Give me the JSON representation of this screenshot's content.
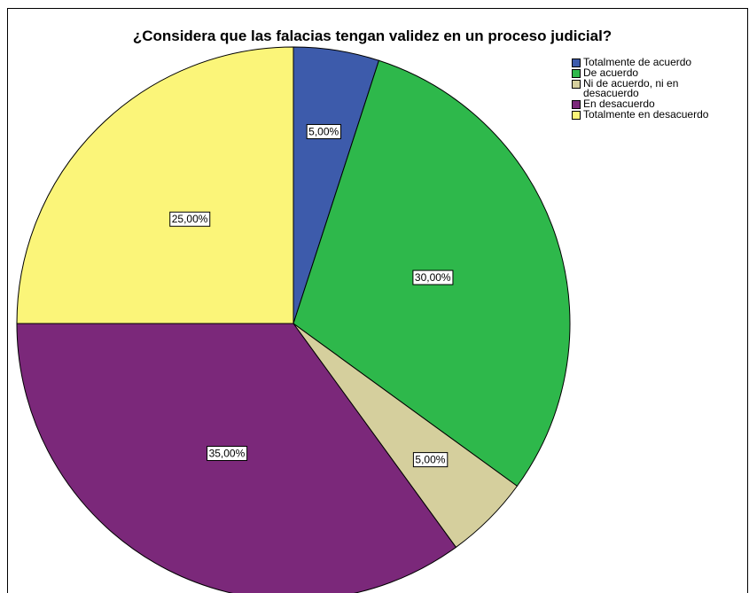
{
  "chart_data": {
    "type": "pie",
    "title": "¿Considera que las falacias tengan validez en un proceso judicial?",
    "categories": [
      "Totalmente de acuerdo",
      "De acuerdo",
      "Ni de acuerdo, ni en desacuerdo",
      "En desacuerdo",
      "Totalmente en desacuerdo"
    ],
    "values": [
      5,
      30,
      5,
      35,
      25
    ],
    "value_labels": [
      "5,00%",
      "30,00%",
      "5,00%",
      "35,00%",
      "25,00%"
    ],
    "colors": [
      "#3d5bab",
      "#2eb84b",
      "#d5cf9d",
      "#7b287a",
      "#fbf579"
    ],
    "legend": "top-right"
  }
}
